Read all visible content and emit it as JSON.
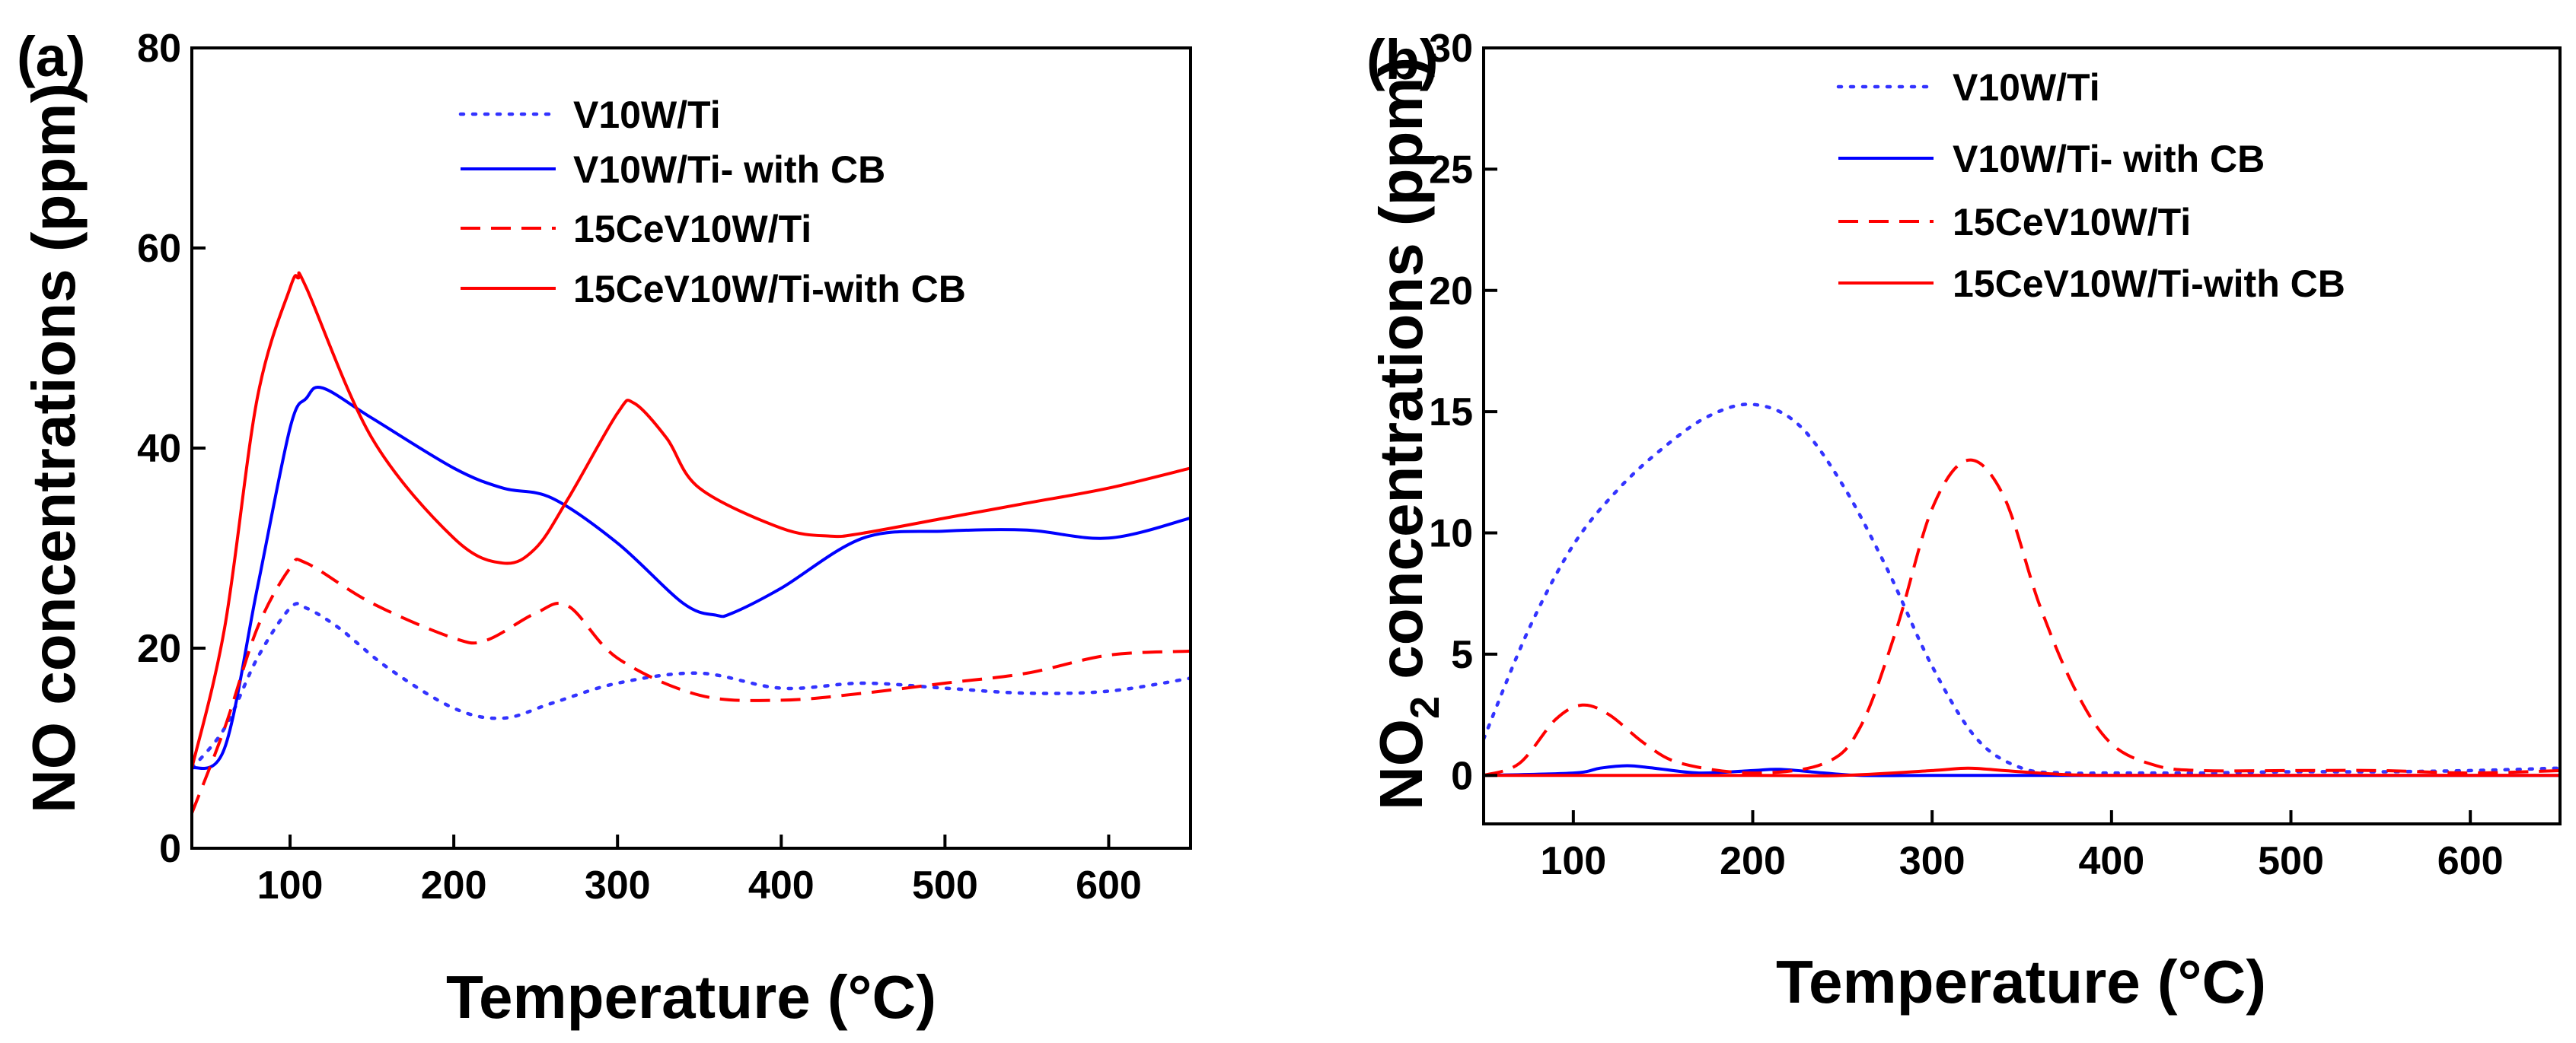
{
  "chart_data": [
    {
      "panel": "(a)",
      "type": "line",
      "xlabel": "Temperature (°C)",
      "ylabel": "NO concentrations (ppm)",
      "xlim": [
        40,
        650
      ],
      "ylim": [
        0,
        80
      ],
      "xticks": [
        100,
        200,
        300,
        400,
        500,
        600
      ],
      "yticks": [
        0,
        20,
        40,
        60,
        80
      ],
      "legend": "top-center",
      "series": [
        {
          "name": "V10W/Ti",
          "color": "#3333ff",
          "style": "dotted",
          "x": [
            40,
            60,
            80,
            100,
            110,
            130,
            160,
            200,
            230,
            260,
            300,
            350,
            400,
            450,
            500,
            550,
            600,
            650
          ],
          "y": [
            8,
            12,
            19,
            24,
            24,
            22,
            18,
            14,
            13,
            14.5,
            16.5,
            17.5,
            16,
            16.5,
            16,
            15.5,
            15.7,
            17
          ]
        },
        {
          "name": "V10W/Ti- with CB",
          "color": "#0000ff",
          "style": "solid",
          "x": [
            40,
            60,
            80,
            100,
            110,
            120,
            150,
            200,
            230,
            260,
            300,
            340,
            360,
            370,
            400,
            450,
            500,
            550,
            600,
            650
          ],
          "y": [
            8,
            10,
            26,
            42,
            45,
            46,
            43,
            38,
            36,
            35,
            30.5,
            24.5,
            23.3,
            23.5,
            26,
            31,
            31.7,
            31.8,
            31,
            33
          ]
        },
        {
          "name": "15CeV10W/Ti",
          "color": "#ff0000",
          "style": "dashed",
          "x": [
            40,
            60,
            80,
            100,
            110,
            150,
            200,
            220,
            250,
            270,
            300,
            350,
            400,
            450,
            500,
            550,
            600,
            650
          ],
          "y": [
            3.5,
            12,
            22,
            28,
            28.5,
            24.5,
            21,
            20.8,
            23.5,
            24.2,
            19,
            15.3,
            14.8,
            15.5,
            16.5,
            17.5,
            19.3,
            19.7
          ]
        },
        {
          "name": "15CeV10W/Ti-with CB",
          "color": "#ff0000",
          "style": "solid",
          "x": [
            40,
            60,
            80,
            100,
            105,
            110,
            150,
            200,
            230,
            250,
            270,
            300,
            310,
            330,
            350,
            400,
            430,
            450,
            500,
            550,
            600,
            650
          ],
          "y": [
            8,
            22,
            45,
            56,
            57,
            56,
            41,
            31,
            28.5,
            30,
            35,
            43.5,
            44.5,
            41,
            36,
            32,
            31.2,
            31.5,
            33,
            34.5,
            36,
            38
          ]
        }
      ]
    },
    {
      "panel": "(b)",
      "type": "line",
      "xlabel": "Temperature (°C)",
      "ylabel_main": "NO",
      "ylabel_sub": "2",
      "ylabel_tail": " concentrations (ppm)",
      "xlim": [
        50,
        650
      ],
      "ylim": [
        -2,
        30
      ],
      "xticks": [
        100,
        200,
        300,
        400,
        500,
        600
      ],
      "yticks": [
        0,
        5,
        10,
        15,
        20,
        25,
        30
      ],
      "legend": "top-center",
      "series": [
        {
          "name": "V10W/Ti",
          "color": "#3333ff",
          "style": "dotted",
          "x": [
            50,
            75,
            100,
            125,
            150,
            175,
            200,
            225,
            250,
            275,
            300,
            325,
            350,
            375,
            400,
            450,
            500,
            550,
            600,
            650
          ],
          "y": [
            1.5,
            6,
            9.5,
            11.8,
            13.5,
            14.8,
            15.3,
            14.5,
            12,
            8.5,
            4.5,
            1.5,
            0.3,
            0.1,
            0.1,
            0.1,
            0.15,
            0.15,
            0.2,
            0.3
          ]
        },
        {
          "name": "V10W/Ti- with CB",
          "color": "#0000ff",
          "style": "solid",
          "x": [
            50,
            100,
            115,
            130,
            145,
            170,
            200,
            215,
            240,
            260,
            300,
            400,
            500,
            600,
            650
          ],
          "y": [
            0,
            0.1,
            0.3,
            0.4,
            0.3,
            0.1,
            0.2,
            0.25,
            0.1,
            0,
            0,
            0,
            0,
            0,
            0
          ]
        },
        {
          "name": "15CeV10W/Ti",
          "color": "#ff0000",
          "style": "dashed",
          "x": [
            50,
            70,
            90,
            105,
            120,
            140,
            160,
            200,
            240,
            260,
            280,
            300,
            320,
            340,
            360,
            380,
            400,
            425,
            450,
            500,
            550,
            600,
            650
          ],
          "y": [
            0,
            0.5,
            2.3,
            2.9,
            2.5,
            1.3,
            0.5,
            0.1,
            0.5,
            2,
            6,
            11,
            13,
            11.5,
            7,
            3.5,
            1.3,
            0.4,
            0.2,
            0.2,
            0.2,
            0.1,
            0.2
          ]
        },
        {
          "name": "15CeV10W/Ti-with CB",
          "color": "#ff0000",
          "style": "solid",
          "x": [
            50,
            200,
            250,
            300,
            320,
            340,
            370,
            400,
            500,
            600,
            650
          ],
          "y": [
            0,
            0,
            0,
            0.2,
            0.3,
            0.2,
            0.05,
            0,
            0,
            0,
            0
          ]
        }
      ]
    }
  ]
}
